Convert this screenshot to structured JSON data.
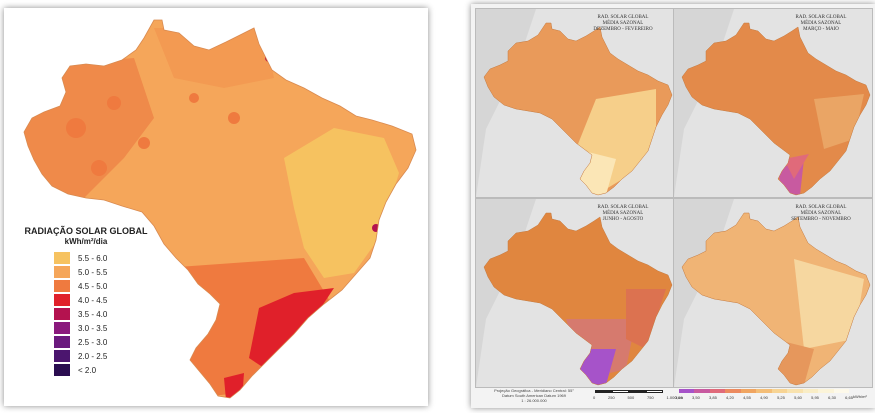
{
  "left_map": {
    "legend": {
      "title": "RADIAÇÃO SOLAR GLOBAL",
      "unit": "kWh/m²/dia",
      "items": [
        {
          "label": "5.5 - 6.0",
          "color": "#f6c260"
        },
        {
          "label": "5.0 - 5.5",
          "color": "#f5a65a"
        },
        {
          "label": "4.5 - 5.0",
          "color": "#ef7a3f"
        },
        {
          "label": "4.0 - 4.5",
          "color": "#e0202a"
        },
        {
          "label": "3.5 - 4.0",
          "color": "#b4124f"
        },
        {
          "label": "3.0 - 3.5",
          "color": "#8a1a7d"
        },
        {
          "label": "2.5 - 3.0",
          "color": "#6b1a7e"
        },
        {
          "label": "2.0 - 2.5",
          "color": "#4b156e"
        },
        {
          "label": "< 2.0",
          "color": "#2a0d50"
        }
      ]
    }
  },
  "right_maps": {
    "panels": [
      {
        "title": [
          "RAD. SOLAR GLOBAL",
          "MÉDIA SAZONAL",
          "DEZEMBRO - FEVEREIRO"
        ]
      },
      {
        "title": [
          "RAD. SOLAR GLOBAL",
          "MÉDIA SAZONAL",
          "MARÇO - MAIO"
        ]
      },
      {
        "title": [
          "RAD. SOLAR GLOBAL",
          "MÉDIA SAZONAL",
          "JUNHO - AGOSTO"
        ]
      },
      {
        "title": [
          "RAD. SOLAR GLOBAL",
          "MÉDIA SAZONAL",
          "SETEMBRO - NOVEMBRO"
        ]
      }
    ],
    "projection_note": [
      "Projeção Geográfica - Meridiano Central: 55°",
      "Datum South American Datum 1969",
      "1 : 26.000.000"
    ],
    "scale_labels": [
      "0",
      "250",
      "500",
      "750",
      "1.000 km"
    ],
    "colorbar": {
      "ticks": [
        "3,15",
        "3,50",
        "3,85",
        "4,20",
        "4,55",
        "4,90",
        "5,25",
        "5,60",
        "5,95",
        "6,30",
        "6,65"
      ],
      "unit": "kWh/m²",
      "colors": [
        "#a653c9",
        "#c85aa0",
        "#e06a7a",
        "#ec8a5f",
        "#f0a561",
        "#f4be77",
        "#f7d494",
        "#f8e2ae",
        "#f9edc6",
        "#fbf4d9",
        "#fdf9ea"
      ]
    }
  }
}
